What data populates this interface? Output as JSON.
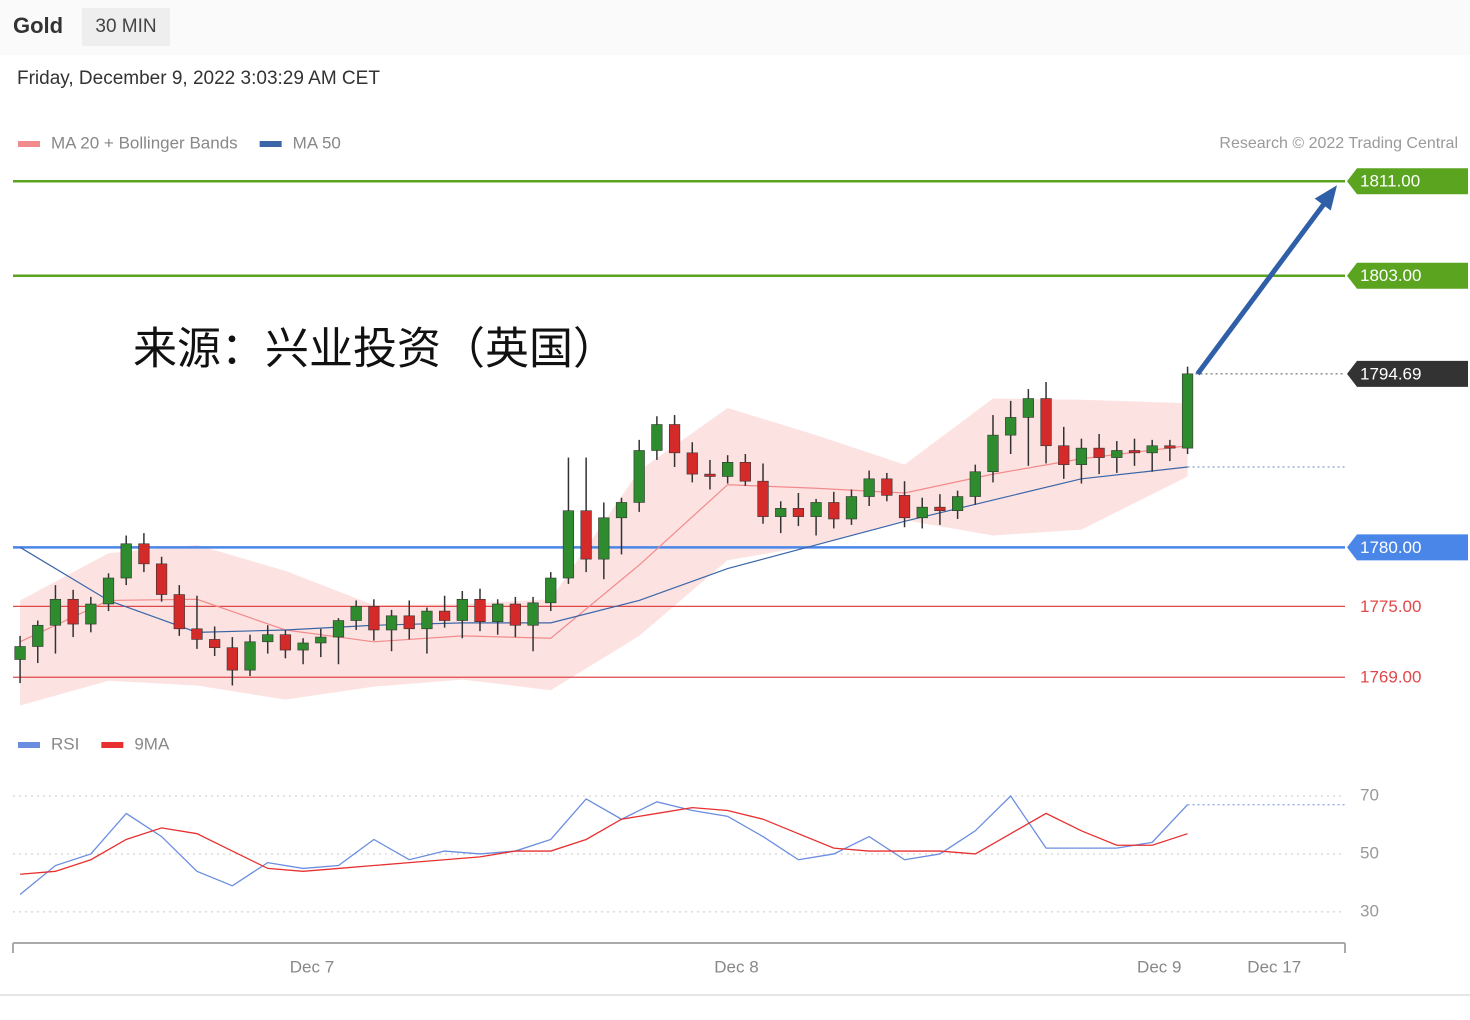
{
  "header": {
    "title": "Gold",
    "interval": "30 MIN",
    "timestamp": "Friday, December 9, 2022 3:03:29 AM CET"
  },
  "watermark": "来源：兴业投资（英国）",
  "chart_data": [
    {
      "type": "candlestick",
      "credit": "Research © 2022 Trading Central",
      "xlim": [
        -0.4,
        74.9
      ],
      "ylim": [
        1765.8,
        1812.8
      ],
      "up_color": "#2e8b2e",
      "down_color": "#d42a2a",
      "ohlc": [
        [
          1770.5,
          1772.5,
          1768.5,
          1771.6
        ],
        [
          1771.6,
          1773.8,
          1770.2,
          1773.4
        ],
        [
          1773.4,
          1776.8,
          1771.0,
          1775.6
        ],
        [
          1775.6,
          1776.4,
          1772.4,
          1773.5
        ],
        [
          1773.5,
          1775.8,
          1772.8,
          1775.2
        ],
        [
          1775.2,
          1777.8,
          1774.6,
          1777.4
        ],
        [
          1777.4,
          1781.0,
          1776.8,
          1780.3
        ],
        [
          1780.3,
          1781.2,
          1777.9,
          1778.6
        ],
        [
          1778.6,
          1779.2,
          1775.4,
          1776.0
        ],
        [
          1776.0,
          1776.8,
          1772.5,
          1773.1
        ],
        [
          1773.1,
          1775.9,
          1771.4,
          1772.2
        ],
        [
          1772.2,
          1773.3,
          1770.8,
          1771.5
        ],
        [
          1771.5,
          1772.4,
          1768.3,
          1769.6
        ],
        [
          1769.6,
          1772.6,
          1769.1,
          1772.0
        ],
        [
          1772.0,
          1773.4,
          1771.0,
          1772.6
        ],
        [
          1772.6,
          1773.0,
          1770.6,
          1771.3
        ],
        [
          1771.3,
          1772.3,
          1770.1,
          1771.9
        ],
        [
          1771.9,
          1773.1,
          1770.7,
          1772.4
        ],
        [
          1772.4,
          1774.0,
          1770.1,
          1773.8
        ],
        [
          1773.8,
          1775.5,
          1773.0,
          1775.0
        ],
        [
          1775.0,
          1775.6,
          1772.1,
          1773.0
        ],
        [
          1773.0,
          1774.7,
          1771.2,
          1774.2
        ],
        [
          1774.2,
          1775.5,
          1772.2,
          1773.1
        ],
        [
          1773.1,
          1774.9,
          1771.0,
          1774.6
        ],
        [
          1774.6,
          1775.9,
          1773.2,
          1773.8
        ],
        [
          1773.8,
          1776.3,
          1772.3,
          1775.6
        ],
        [
          1775.6,
          1776.5,
          1772.9,
          1773.7
        ],
        [
          1773.7,
          1775.6,
          1772.6,
          1775.2
        ],
        [
          1775.2,
          1775.8,
          1772.4,
          1773.4
        ],
        [
          1773.4,
          1775.8,
          1771.2,
          1775.3
        ],
        [
          1775.3,
          1777.9,
          1774.6,
          1777.4
        ],
        [
          1777.4,
          1787.6,
          1776.9,
          1783.1
        ],
        [
          1783.1,
          1787.6,
          1777.9,
          1779.0
        ],
        [
          1779.0,
          1783.8,
          1777.3,
          1782.5
        ],
        [
          1782.5,
          1784.2,
          1779.4,
          1783.8
        ],
        [
          1783.8,
          1789.1,
          1783.0,
          1788.2
        ],
        [
          1788.2,
          1791.1,
          1787.4,
          1790.4
        ],
        [
          1790.4,
          1791.2,
          1786.8,
          1788.0
        ],
        [
          1788.0,
          1788.9,
          1785.5,
          1786.2
        ],
        [
          1786.2,
          1787.4,
          1784.9,
          1786.0
        ],
        [
          1786.0,
          1787.8,
          1785.4,
          1787.2
        ],
        [
          1787.2,
          1787.9,
          1785.2,
          1785.6
        ],
        [
          1785.6,
          1787.1,
          1782.0,
          1782.6
        ],
        [
          1782.6,
          1783.9,
          1781.2,
          1783.3
        ],
        [
          1783.3,
          1784.6,
          1781.8,
          1782.6
        ],
        [
          1782.6,
          1784.1,
          1781.0,
          1783.8
        ],
        [
          1783.8,
          1784.7,
          1781.6,
          1782.4
        ],
        [
          1782.4,
          1784.9,
          1781.9,
          1784.3
        ],
        [
          1784.3,
          1786.5,
          1783.5,
          1785.8
        ],
        [
          1785.8,
          1786.3,
          1783.9,
          1784.4
        ],
        [
          1784.4,
          1785.6,
          1781.7,
          1782.5
        ],
        [
          1782.5,
          1784.2,
          1781.6,
          1783.4
        ],
        [
          1783.4,
          1784.5,
          1781.9,
          1783.1
        ],
        [
          1783.1,
          1784.8,
          1782.4,
          1784.3
        ],
        [
          1784.3,
          1787.0,
          1783.6,
          1786.4
        ],
        [
          1786.4,
          1791.2,
          1785.5,
          1789.5
        ],
        [
          1789.5,
          1792.4,
          1787.9,
          1791.0
        ],
        [
          1791.0,
          1793.4,
          1786.9,
          1792.6
        ],
        [
          1792.6,
          1794.0,
          1787.1,
          1788.6
        ],
        [
          1788.6,
          1790.2,
          1785.8,
          1787.0
        ],
        [
          1787.0,
          1789.2,
          1785.4,
          1788.4
        ],
        [
          1788.4,
          1789.6,
          1786.2,
          1787.6
        ],
        [
          1787.6,
          1789.0,
          1786.3,
          1788.2
        ],
        [
          1788.2,
          1789.2,
          1786.9,
          1788.0
        ],
        [
          1788.0,
          1789.1,
          1786.4,
          1788.6
        ],
        [
          1788.6,
          1789.1,
          1787.3,
          1788.4
        ],
        [
          1788.4,
          1795.3,
          1787.9,
          1794.69
        ]
      ],
      "x": [
        0,
        5,
        10,
        15,
        20,
        25,
        30,
        35,
        40,
        45,
        50,
        55,
        60,
        66
      ],
      "series": [
        {
          "name": "MA 20 + Bollinger Bands",
          "color": "#f28b8b",
          "band_color": "#fde2e2",
          "values": [
            1772.0,
            1775.5,
            1775.6,
            1773.0,
            1772.0,
            1772.5,
            1772.3,
            1778.5,
            1785.3,
            1785.0,
            1784.6,
            1786.2,
            1787.5,
            1788.6
          ],
          "upper": [
            1775.5,
            1779.5,
            1780.2,
            1778.0,
            1775.1,
            1775.2,
            1775.6,
            1786.5,
            1791.8,
            1789.5,
            1787.0,
            1792.6,
            1792.5,
            1792.2
          ],
          "lower": [
            1766.6,
            1768.7,
            1768.3,
            1767.1,
            1768.2,
            1768.8,
            1767.9,
            1772.5,
            1778.9,
            1780.2,
            1782.3,
            1781.0,
            1781.5,
            1786.0
          ]
        },
        {
          "name": "MA 50",
          "color": "#3a66a8",
          "values": [
            1780.0,
            1775.5,
            1772.8,
            1773.0,
            1773.4,
            1773.6,
            1773.6,
            1775.5,
            1778.2,
            1780.2,
            1782.2,
            1784.0,
            1785.8,
            1786.8
          ]
        }
      ],
      "levels": [
        {
          "value": 1811,
          "label": "1811.00",
          "color": "#5aa420",
          "boxed": true,
          "line": "solid"
        },
        {
          "value": 1803,
          "label": "1803.00",
          "color": "#5aa420",
          "boxed": true,
          "line": "solid"
        },
        {
          "value": 1794.69,
          "label": "1794.69",
          "color": "#333333",
          "boxed": true,
          "line": "dotted"
        },
        {
          "value": 1780,
          "label": "1780.00",
          "color": "#4a86e8",
          "boxed": true,
          "line": "solid"
        },
        {
          "value": 1775,
          "label": "1775.00",
          "color": "#e0484a",
          "boxed": false,
          "line": "solid"
        },
        {
          "value": 1769,
          "label": "1769.00",
          "color": "#e0484a",
          "boxed": false,
          "line": "solid"
        }
      ]
    },
    {
      "type": "line",
      "xlim": [
        -0.4,
        74.9
      ],
      "ylim": [
        22,
        79
      ],
      "yticks": [
        70,
        50,
        30
      ],
      "grid": true,
      "xticks": [
        {
          "value": 16.5,
          "label": "Dec 7"
        },
        {
          "value": 40.5,
          "label": "Dec 8"
        },
        {
          "value": 64.4,
          "label": "Dec 9"
        },
        {
          "value": 70.9,
          "label": "Dec 17"
        }
      ],
      "x": [
        0,
        2,
        4,
        6,
        8,
        10,
        12,
        14,
        16,
        18,
        20,
        22,
        24,
        26,
        28,
        30,
        32,
        34,
        36,
        38,
        40,
        42,
        44,
        46,
        48,
        50,
        52,
        54,
        56,
        58,
        60,
        62,
        64,
        66
      ],
      "series": [
        {
          "name": "RSI",
          "color": "#6a8de0",
          "values": [
            36,
            46,
            50,
            64,
            56,
            44,
            39,
            47,
            45,
            46,
            55,
            48,
            51,
            50,
            51,
            55,
            69,
            62,
            68,
            65,
            63,
            56,
            48,
            50,
            56,
            48,
            50,
            58,
            70,
            52,
            52,
            52,
            54,
            67
          ]
        },
        {
          "name": "9MA",
          "color": "#e83030",
          "values": [
            43,
            44,
            48,
            55,
            59,
            57,
            51,
            45,
            44,
            45,
            46,
            47,
            48,
            49,
            51,
            51,
            55,
            62,
            64,
            66,
            65,
            62,
            57,
            52,
            51,
            51,
            51,
            50,
            57,
            64,
            58,
            53,
            53,
            57
          ]
        }
      ]
    }
  ]
}
